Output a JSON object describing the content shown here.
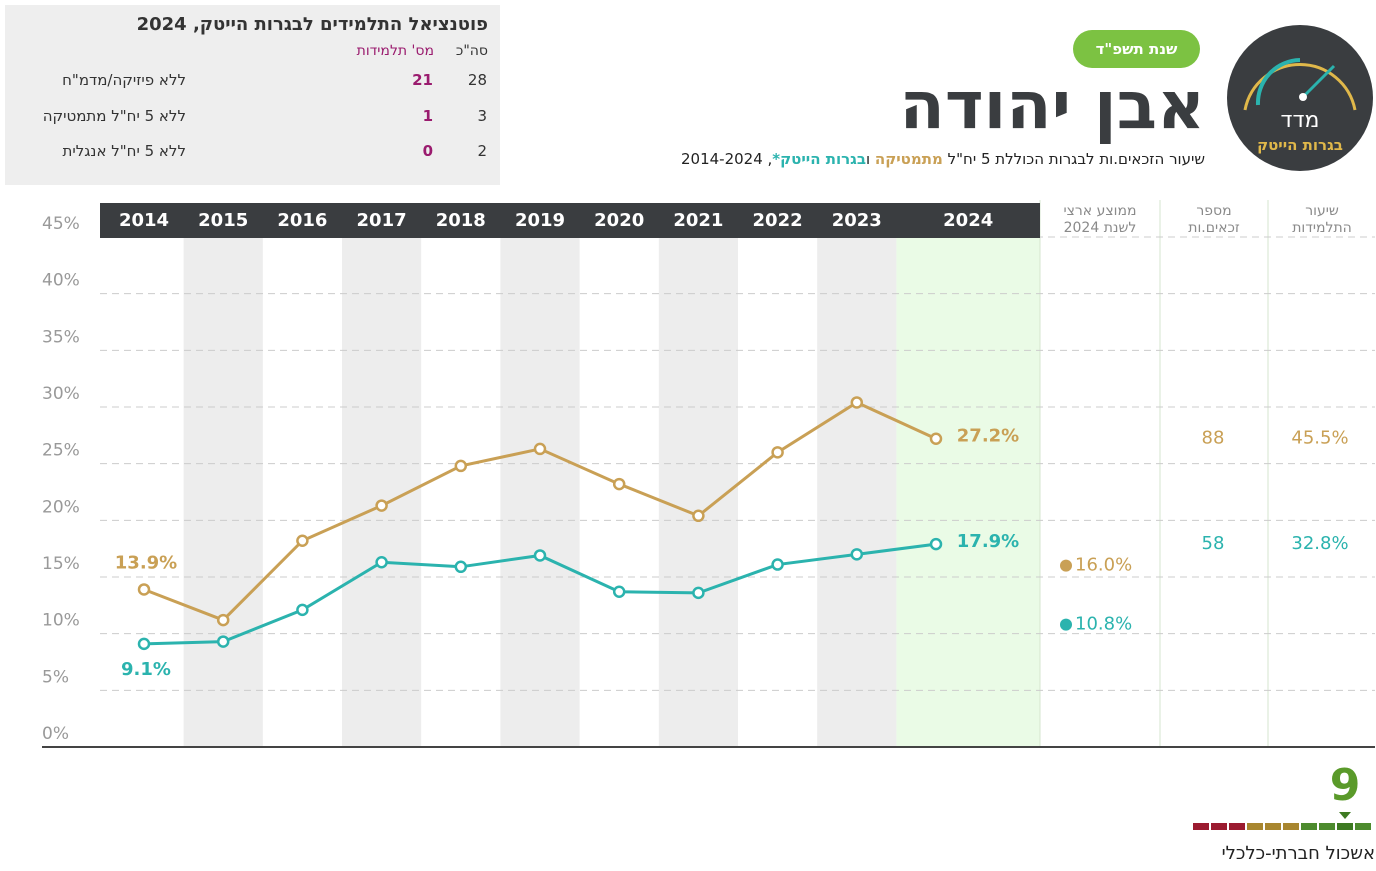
{
  "header": {
    "logo_top": "מדד",
    "logo_bottom": "בגרות הייטק",
    "year_badge": "שנת תשפ\"ד",
    "title": "אבן יהודה",
    "subtitle_parts": [
      "שיעור הזכאים.ות לבגרות הכוללת 5 יח\"ל",
      "ו",
      ", 2014-2024"
    ]
  },
  "potential_table": {
    "title": "פוטנציאל התלמידים לבגרות הייטק, 2024",
    "columns": [
      "סה\"כ",
      "מס' תלמידות"
    ],
    "rows": [
      {
        "label": "ללא פיזיקה/מדמ\"ח",
        "girls": 21,
        "total": 28
      },
      {
        "label": "ללא 5 יח\"ל מתמטיקה",
        "girls": 1,
        "total": 3
      },
      {
        "label": "ללא 5 יח\"ל אנגלית",
        "girls": 0,
        "total": 2
      }
    ]
  },
  "chart_data": {
    "type": "line",
    "categories": [
      "2014",
      "2015",
      "2016",
      "2017",
      "2018",
      "2019",
      "2020",
      "2021",
      "2022",
      "2023",
      "2024"
    ],
    "series": [
      {
        "name": "מתמטיקה",
        "color": "#c9a055",
        "values": [
          13.9,
          11.2,
          18.2,
          21.3,
          24.8,
          26.3,
          23.2,
          20.4,
          26.0,
          30.4,
          27.2
        ],
        "value_labels": [
          "13.9%",
          null,
          null,
          null,
          null,
          null,
          null,
          null,
          null,
          null,
          "27.2%"
        ]
      },
      {
        "name": "בגרות הייטק*",
        "color": "#2bb3ae",
        "values": [
          9.1,
          9.3,
          12.1,
          16.3,
          15.9,
          16.9,
          13.7,
          13.6,
          16.1,
          17.0,
          17.9
        ],
        "value_labels": [
          "9.1%",
          null,
          null,
          null,
          null,
          null,
          null,
          null,
          null,
          null,
          "17.9%"
        ]
      }
    ],
    "ylim": [
      0,
      45
    ],
    "yticks": [
      {
        "value": 0,
        "label": "0%"
      },
      {
        "value": 5,
        "label": "5%"
      },
      {
        "value": 10,
        "label": "10%"
      },
      {
        "value": 15,
        "label": "15%"
      },
      {
        "value": 20,
        "label": "20%"
      },
      {
        "value": 25,
        "label": "25%"
      },
      {
        "value": 30,
        "label": "30%"
      },
      {
        "value": 35,
        "label": "35%"
      },
      {
        "value": 40,
        "label": "40%"
      },
      {
        "value": 45,
        "label": "45%"
      }
    ],
    "grid": true,
    "national_average": {
      "title": "ממוצע ארצי לשנת 2024",
      "values": [
        16.0,
        10.8
      ],
      "value_labels": [
        "16.0%",
        "10.8%"
      ]
    },
    "columns": [
      {
        "title": "מספר זכאים.ות",
        "values": [
          88,
          58
        ]
      },
      {
        "title": "שיעור התלמידות",
        "values": [
          "45.5%",
          "32.8%"
        ]
      }
    ]
  },
  "footer": {
    "cluster": 9,
    "cluster_label": "אשכול חברתי-כלכלי"
  }
}
